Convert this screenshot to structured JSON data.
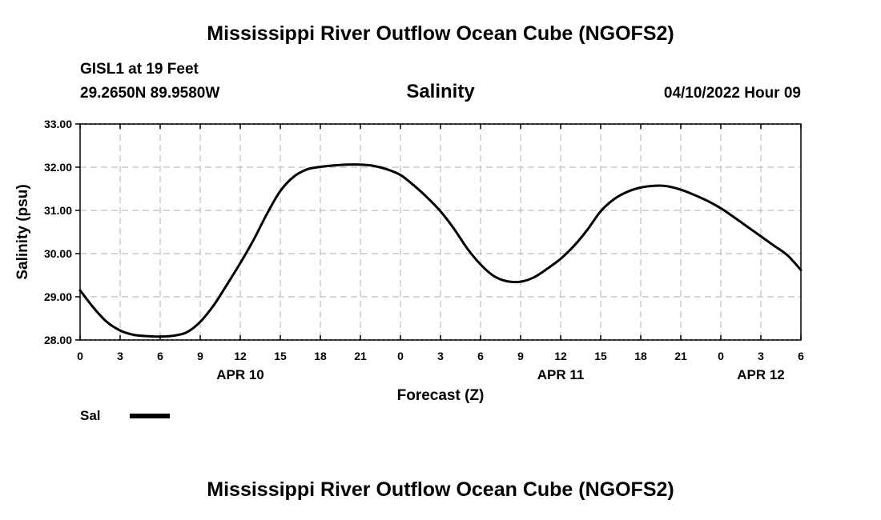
{
  "page": {
    "title": "Mississippi River Outflow Ocean Cube (NGOFS2)",
    "footer_title": "Mississippi River Outflow Ocean Cube (NGOFS2)",
    "station": "GISL1 at 19 Feet",
    "location": "29.2650N  89.9580W",
    "datetime": "04/10/2022 Hour 09"
  },
  "chart_data": {
    "type": "line",
    "title": "Salinity",
    "xlabel": "Forecast (Z)",
    "ylabel": "Salinity (psu)",
    "xlim": [
      0,
      54
    ],
    "ylim": [
      28,
      33
    ],
    "yticks": [
      "28.00",
      "29.00",
      "30.00",
      "31.00",
      "32.00",
      "33.00"
    ],
    "xticks": [
      {
        "x": 0,
        "label": "0"
      },
      {
        "x": 3,
        "label": "3"
      },
      {
        "x": 6,
        "label": "6"
      },
      {
        "x": 9,
        "label": "9"
      },
      {
        "x": 12,
        "label": "12"
      },
      {
        "x": 15,
        "label": "15"
      },
      {
        "x": 18,
        "label": "18"
      },
      {
        "x": 21,
        "label": "21"
      },
      {
        "x": 24,
        "label": "0"
      },
      {
        "x": 27,
        "label": "3"
      },
      {
        "x": 30,
        "label": "6"
      },
      {
        "x": 33,
        "label": "9"
      },
      {
        "x": 36,
        "label": "12"
      },
      {
        "x": 39,
        "label": "15"
      },
      {
        "x": 42,
        "label": "18"
      },
      {
        "x": 45,
        "label": "21"
      },
      {
        "x": 48,
        "label": "0"
      },
      {
        "x": 51,
        "label": "3"
      },
      {
        "x": 54,
        "label": "6"
      }
    ],
    "date_labels": [
      {
        "x": 12,
        "label": "APR 10"
      },
      {
        "x": 36,
        "label": "APR 11"
      },
      {
        "x": 51,
        "label": "APR 12"
      }
    ],
    "grid": true,
    "series": [
      {
        "name": "Sal",
        "color": "#000000",
        "x": [
          0,
          1,
          2,
          3,
          4,
          5,
          6,
          7,
          8,
          9,
          10,
          11,
          12,
          13,
          14,
          15,
          16,
          17,
          18,
          19,
          20,
          21,
          22,
          23,
          24,
          25,
          26,
          27,
          28,
          29,
          30,
          31,
          32,
          33,
          34,
          35,
          36,
          37,
          38,
          39,
          40,
          41,
          42,
          43,
          44,
          45,
          46,
          47,
          48,
          49,
          50,
          51,
          52,
          53,
          54
        ],
        "values": [
          29.15,
          28.75,
          28.42,
          28.22,
          28.12,
          28.09,
          28.08,
          28.1,
          28.18,
          28.42,
          28.8,
          29.28,
          29.78,
          30.32,
          30.92,
          31.45,
          31.78,
          31.95,
          32.01,
          32.04,
          32.06,
          32.06,
          32.03,
          31.95,
          31.82,
          31.58,
          31.3,
          30.98,
          30.58,
          30.12,
          29.75,
          29.48,
          29.36,
          29.35,
          29.45,
          29.65,
          29.88,
          30.18,
          30.55,
          30.98,
          31.26,
          31.43,
          31.53,
          31.57,
          31.56,
          31.48,
          31.36,
          31.22,
          31.05,
          30.84,
          30.62,
          30.4,
          30.18,
          29.96,
          29.62
        ]
      }
    ],
    "legend": {
      "label": "Sal",
      "position": "bottom-left"
    }
  }
}
